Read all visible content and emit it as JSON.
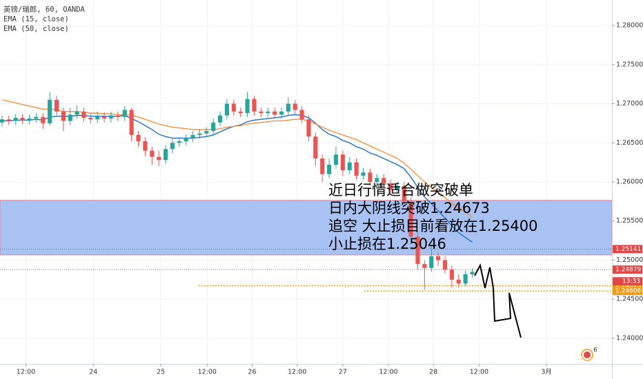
{
  "chart_data": {
    "type": "candlestick",
    "title": "英镑/瑞郎, 60, OANDA",
    "open": [
      1.2676,
      1.268,
      1.2678,
      1.2682,
      1.2679,
      1.2681,
      1.2683,
      1.2675,
      1.2705,
      1.269,
      1.2678,
      1.2686,
      1.269,
      1.2682,
      1.268,
      1.2684,
      1.2681,
      1.2685,
      1.2683,
      1.2692,
      1.266,
      1.2652,
      1.264,
      1.2632,
      1.2628,
      1.2642,
      1.265,
      1.2652,
      1.2656,
      1.266,
      1.2662,
      1.2665,
      1.2676,
      1.2685,
      1.27,
      1.269,
      1.2688,
      1.2706,
      1.269,
      1.2688,
      1.269,
      1.2686,
      1.269,
      1.27,
      1.2692,
      1.268,
      1.2658,
      1.263,
      1.261,
      1.2622,
      1.2635,
      1.2615,
      1.2625,
      1.2608,
      1.2612,
      1.26,
      1.2605,
      1.2598,
      1.259,
      1.2595,
      1.2575,
      1.253,
      1.2495,
      1.249,
      1.2505,
      1.25,
      1.2488,
      1.2475,
      1.247,
      1.2482
    ],
    "high": [
      1.2685,
      1.2685,
      1.2687,
      1.2687,
      1.2686,
      1.2688,
      1.2688,
      1.2715,
      1.271,
      1.2695,
      1.2695,
      1.2698,
      1.2695,
      1.2688,
      1.269,
      1.2689,
      1.269,
      1.269,
      1.2697,
      1.2695,
      1.2665,
      1.2657,
      1.2645,
      1.264,
      1.2647,
      1.2655,
      1.2657,
      1.2661,
      1.2665,
      1.2667,
      1.267,
      1.2681,
      1.269,
      1.2706,
      1.2705,
      1.2695,
      1.2715,
      1.271,
      1.2695,
      1.2695,
      1.2695,
      1.2695,
      1.2708,
      1.2705,
      1.2697,
      1.2685,
      1.2663,
      1.2635,
      1.263,
      1.2645,
      1.264,
      1.2632,
      1.263,
      1.2618,
      1.2617,
      1.261,
      1.261,
      1.2603,
      1.26,
      1.26,
      1.258,
      1.2535,
      1.25,
      1.2518,
      1.251,
      1.2505,
      1.2493,
      1.2482,
      1.2487,
      1.249
    ],
    "low": [
      1.2671,
      1.2673,
      1.2673,
      1.2674,
      1.2674,
      1.2676,
      1.2668,
      1.2672,
      1.2685,
      1.2665,
      1.2673,
      1.2681,
      1.2677,
      1.2675,
      1.2675,
      1.2676,
      1.2676,
      1.2678,
      1.2678,
      1.2652,
      1.2645,
      1.2633,
      1.2622,
      1.262,
      1.2623,
      1.2637,
      1.2645,
      1.2647,
      1.2651,
      1.2655,
      1.2657,
      1.266,
      1.2671,
      1.268,
      1.2685,
      1.2683,
      1.2683,
      1.2685,
      1.2683,
      1.2683,
      1.2681,
      1.2681,
      1.2685,
      1.2687,
      1.2675,
      1.2652,
      1.262,
      1.26,
      1.2605,
      1.2617,
      1.2608,
      1.261,
      1.2603,
      1.2603,
      1.2595,
      1.2595,
      1.2593,
      1.2585,
      1.2585,
      1.257,
      1.252,
      1.2488,
      1.2462,
      1.2485,
      1.2493,
      1.2483,
      1.2465,
      1.2465,
      1.2467,
      1.2478
    ],
    "close": [
      1.268,
      1.2678,
      1.2682,
      1.2679,
      1.2681,
      1.2683,
      1.2675,
      1.2705,
      1.269,
      1.2678,
      1.2686,
      1.269,
      1.2682,
      1.268,
      1.2684,
      1.2681,
      1.2685,
      1.2683,
      1.2692,
      1.266,
      1.2652,
      1.264,
      1.2632,
      1.2628,
      1.2642,
      1.265,
      1.2652,
      1.2656,
      1.266,
      1.2662,
      1.2665,
      1.2676,
      1.2685,
      1.27,
      1.269,
      1.2688,
      1.2706,
      1.269,
      1.2688,
      1.269,
      1.2686,
      1.269,
      1.27,
      1.2692,
      1.268,
      1.2658,
      1.263,
      1.261,
      1.2622,
      1.2635,
      1.2615,
      1.2625,
      1.2608,
      1.2612,
      1.26,
      1.2605,
      1.2598,
      1.259,
      1.2595,
      1.2575,
      1.253,
      1.2495,
      1.249,
      1.2505,
      1.25,
      1.2488,
      1.2475,
      1.247,
      1.2482,
      1.2485
    ],
    "up_color": "#26a69a",
    "down_color": "#ef5350",
    "series": [
      {
        "name": "EMA (15, close)",
        "color": "#1e6fc8",
        "values": [
          1.2678,
          1.2678,
          1.2679,
          1.2679,
          1.2679,
          1.268,
          1.2679,
          1.2683,
          1.2684,
          1.2684,
          1.2684,
          1.2685,
          1.2685,
          1.2684,
          1.2684,
          1.2684,
          1.2684,
          1.2684,
          1.2685,
          1.2681,
          1.2677,
          1.2672,
          1.2667,
          1.2661,
          1.2658,
          1.2656,
          1.2656,
          1.2656,
          1.2656,
          1.2657,
          1.2658,
          1.266,
          1.2664,
          1.2668,
          1.2671,
          1.2673,
          1.2677,
          1.2679,
          1.268,
          1.2681,
          1.2682,
          1.2683,
          1.2685,
          1.2686,
          1.2685,
          1.2682,
          1.2675,
          1.2667,
          1.2661,
          1.2658,
          1.2653,
          1.265,
          1.2645,
          1.2642,
          1.2637,
          1.2634,
          1.263,
          1.2626,
          1.2622,
          1.2617,
          1.2606,
          1.2593,
          1.2581,
          1.2572,
          1.2563,
          1.2554,
          1.2544,
          1.2535,
          1.2529,
          1.2523
        ]
      },
      {
        "name": "EMA (50, close)",
        "color": "#f5923e",
        "values": [
          1.2705,
          1.2703,
          1.2701,
          1.2699,
          1.2697,
          1.2695,
          1.2693,
          1.2693,
          1.2692,
          1.269,
          1.269,
          1.269,
          1.2689,
          1.2688,
          1.2688,
          1.2687,
          1.2687,
          1.2686,
          1.2686,
          1.2685,
          1.2683,
          1.268,
          1.2677,
          1.2674,
          1.2672,
          1.267,
          1.2669,
          1.2668,
          1.2667,
          1.2667,
          1.2667,
          1.2667,
          1.2668,
          1.267,
          1.2671,
          1.2672,
          1.2674,
          1.2675,
          1.2676,
          1.2677,
          1.2678,
          1.2678,
          1.2679,
          1.268,
          1.268,
          1.2678,
          1.2674,
          1.267,
          1.2666,
          1.2663,
          1.266,
          1.2657,
          1.2654,
          1.265,
          1.2646,
          1.2642,
          1.2638,
          1.2634,
          1.263,
          1.2624,
          1.2616,
          1.2608,
          1.26,
          1.2593,
          1.2587,
          1.258,
          1.2573,
          1.2567,
          1.2561,
          1.2555
        ]
      }
    ],
    "xlim": [
      -0.3,
      89.5
    ],
    "xticks": [
      {
        "value": 3.5,
        "label": "12:00"
      },
      {
        "value": 13.4,
        "label": "24"
      },
      {
        "value": 23.3,
        "label": "25"
      },
      {
        "value": 30.1,
        "label": "12:00"
      },
      {
        "value": 36.7,
        "label": "26"
      },
      {
        "value": 43.3,
        "label": "12:00"
      },
      {
        "value": 50,
        "label": "27"
      },
      {
        "value": 56.7,
        "label": "12:00"
      },
      {
        "value": 63.3,
        "label": "28"
      },
      {
        "value": 70,
        "label": "12:00"
      },
      {
        "value": 79.9,
        "label": "3月"
      }
    ],
    "ylim": [
      1.23674,
      1.28326
    ],
    "yticks": [
      {
        "value": 1.24,
        "label": "1.24000"
      },
      {
        "value": 1.245,
        "label": "1.24500"
      },
      {
        "value": 1.25,
        "label": "1.25000"
      },
      {
        "value": 1.255,
        "label": "1.25500"
      },
      {
        "value": 1.26,
        "label": "1.26000"
      },
      {
        "value": 1.265,
        "label": "1.26500"
      },
      {
        "value": 1.27,
        "label": "1.27000"
      },
      {
        "value": 1.275,
        "label": "1.27500"
      },
      {
        "value": 1.28,
        "label": "1.28000"
      }
    ],
    "grid": true,
    "zone": {
      "range": [
        1.25066,
        1.25765
      ],
      "color": "#a3bff2"
    },
    "levels": [
      {
        "value": 1.25141,
        "color": "#e04848"
      },
      {
        "value": 1.24879,
        "color": "#e04848"
      },
      {
        "value": 1.24673,
        "color": "#f39c12"
      },
      {
        "value": 1.24606,
        "color": "#f39c12"
      }
    ],
    "countdown": {
      "label": "13:33",
      "color": "#e04848"
    },
    "annotations": [
      "近日行情适合做突破单",
      "日内大阴线突破1.24673",
      "追空 大止损目前看放在1.25400",
      "小止损在1.25046"
    ],
    "badge": "6"
  }
}
